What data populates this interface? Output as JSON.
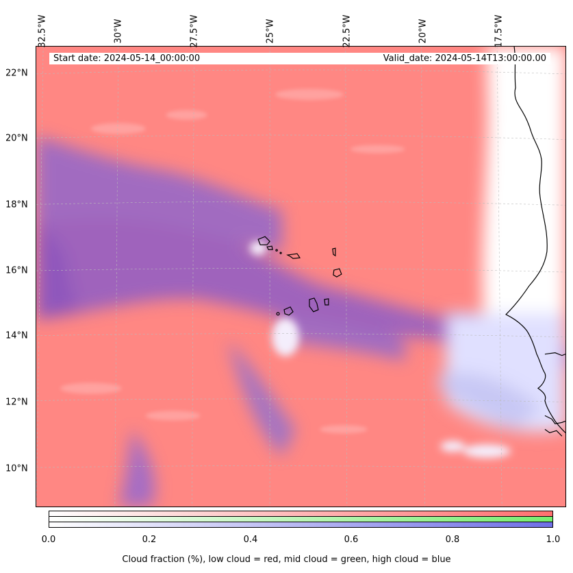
{
  "map": {
    "start_date": "Start date: 2024-05-14_00:00:00",
    "valid_date": "Valid_date: 2024-05-14T13:00:00.00",
    "lon_labels": [
      "32.5°W",
      "30°W",
      "27.5°W",
      "25°W",
      "22.5°W",
      "20°W",
      "17.5°W"
    ],
    "lat_labels": [
      "22°N",
      "20°N",
      "18°N",
      "16°N",
      "14°N",
      "12°N",
      "10°N"
    ],
    "colors": {
      "low_cloud": "#ff7f7f",
      "mid_cloud": "#7fe57f",
      "high_cloud": "#7f7fe5",
      "coast": "#000000"
    }
  },
  "colorbar": {
    "ticks": [
      "0.0",
      "0.2",
      "0.4",
      "0.6",
      "0.8",
      "1.0"
    ],
    "label": "Cloud fraction (%), low cloud = red, mid cloud = green, high cloud = blue"
  }
}
